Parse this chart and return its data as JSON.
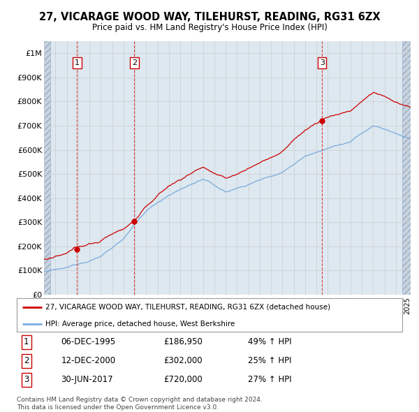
{
  "title": "27, VICARAGE WOOD WAY, TILEHURST, READING, RG31 6ZX",
  "subtitle": "Price paid vs. HM Land Registry's House Price Index (HPI)",
  "yticks": [
    0,
    100000,
    200000,
    300000,
    400000,
    500000,
    600000,
    700000,
    800000,
    900000,
    1000000
  ],
  "ytick_labels": [
    "£0",
    "£100K",
    "£200K",
    "£300K",
    "£400K",
    "£500K",
    "£600K",
    "£700K",
    "£800K",
    "£900K",
    "£1M"
  ],
  "price_paid_color": "#cc0000",
  "hpi_color": "#7aaadd",
  "sale_dates": [
    1995.92,
    2000.95,
    2017.5
  ],
  "sale_labels": [
    "1",
    "2",
    "3"
  ],
  "sale_prices": [
    186950,
    302000,
    720000
  ],
  "legend_line1": "27, VICARAGE WOOD WAY, TILEHURST, READING, RG31 6ZX (detached house)",
  "legend_line2": "HPI: Average price, detached house, West Berkshire",
  "table_entries": [
    [
      "1",
      "06-DEC-1995",
      "£186,950",
      "49% ↑ HPI"
    ],
    [
      "2",
      "12-DEC-2000",
      "£302,000",
      "25% ↑ HPI"
    ],
    [
      "3",
      "30-JUN-2017",
      "£720,000",
      "27% ↑ HPI"
    ]
  ],
  "footer1": "Contains HM Land Registry data © Crown copyright and database right 2024.",
  "footer2": "This data is licensed under the Open Government Licence v3.0.",
  "bg_color": "#dde8f0",
  "grid_color": "#cccccc",
  "xmin": 1993.0,
  "xmax": 2025.3
}
